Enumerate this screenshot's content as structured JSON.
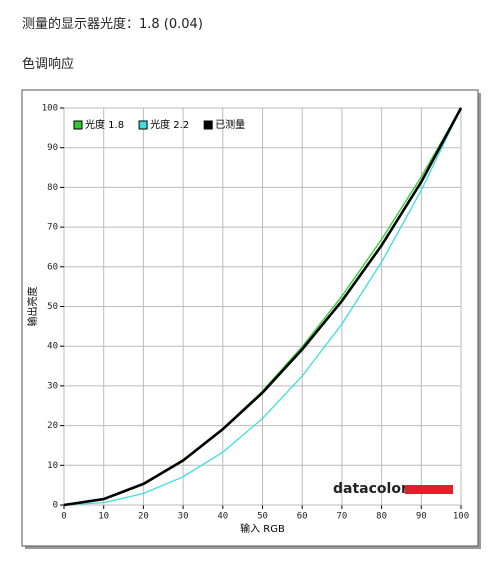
{
  "heading": "测量的显示器光度：1.8 (0.04)",
  "section_title": "色调响应",
  "logo": "datacolor",
  "chart_data": {
    "type": "line",
    "x_label": "输入 RGB",
    "y_label": "输出亮度",
    "x": [
      0,
      10,
      20,
      30,
      40,
      50,
      60,
      70,
      80,
      90,
      100
    ],
    "series": [
      {
        "name": "光度 1.8",
        "color": "#2ecc2e",
        "values": [
          0,
          1.6,
          5.5,
          11.4,
          19.2,
          28.7,
          39.9,
          52.6,
          66.9,
          82.7,
          100
        ]
      },
      {
        "name": "光度 2.2",
        "color": "#3ddede",
        "values": [
          0,
          0.6,
          2.9,
          7.1,
          13.3,
          21.8,
          32.5,
          45.6,
          61.2,
          79.3,
          100
        ]
      },
      {
        "name": "已测量",
        "color": "#000000",
        "values": [
          0,
          1.5,
          5.3,
          11.2,
          19.1,
          28.3,
          39.2,
          51.4,
          65.4,
          81.4,
          100
        ]
      }
    ],
    "xlim": [
      0,
      100
    ],
    "ylim": [
      0,
      100
    ],
    "xticks": [
      0,
      10,
      20,
      30,
      40,
      50,
      60,
      70,
      80,
      90,
      100
    ],
    "yticks": [
      0,
      10,
      20,
      30,
      40,
      50,
      60,
      70,
      80,
      90,
      100
    ],
    "grid": true,
    "legend": "upper left"
  }
}
